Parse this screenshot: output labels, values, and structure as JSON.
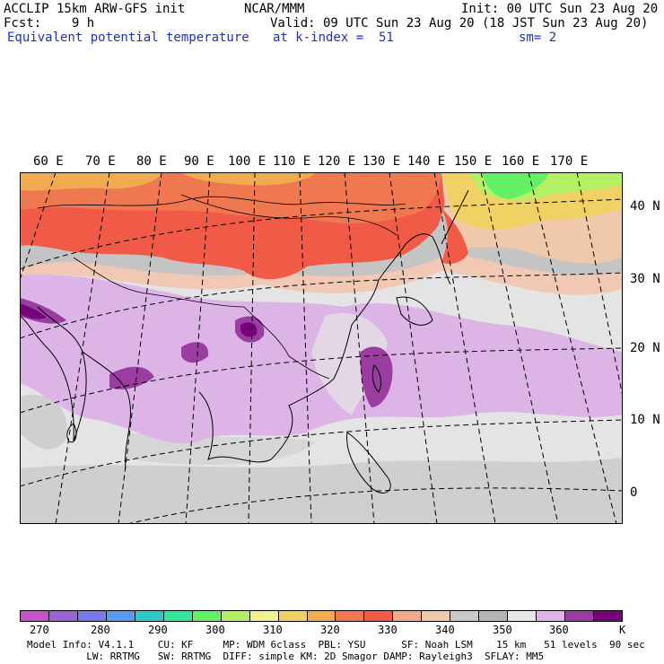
{
  "header": {
    "line1_left": "ACCLIP 15km ARW-GFS init",
    "line1_center": "NCAR/MMM",
    "line1_right": "Init: 00 UTC Sun 23 Aug 20",
    "line2_left": "Fcst:    9 h",
    "line2_right": "Valid: 09 UTC Sun 23 Aug 20 (18 JST Sun 23 Aug 20)",
    "line3_left": "Equivalent potential temperature",
    "line3_center": "at k-index =  51",
    "line3_right": "sm= 2"
  },
  "longitude_labels": [
    "60 E",
    "70 E",
    "80 E",
    "90 E",
    "100 E",
    "110 E",
    "120 E",
    "130 E",
    "140 E",
    "150 E",
    "160 E",
    "170 E"
  ],
  "latitude_labels": [
    "40 N",
    "30 N",
    "20 N",
    "10 N",
    "0"
  ],
  "colorbar": {
    "colors": [
      "#c850c8",
      "#9a64d2",
      "#7a7ae6",
      "#5a9af0",
      "#30c8c8",
      "#30e69a",
      "#64f064",
      "#b4f064",
      "#f0f08c",
      "#f0d264",
      "#f0aa50",
      "#f07850",
      "#f05a46",
      "#f0aa8c",
      "#f0c8aa",
      "#c8c8c8",
      "#b4b4b4",
      "#e6e6e6",
      "#dcb4e6",
      "#9a3ca0",
      "#780078"
    ],
    "tick_labels": [
      "270",
      "280",
      "290",
      "300",
      "310",
      "320",
      "330",
      "340",
      "350",
      "360"
    ],
    "unit": "K"
  },
  "model_info": {
    "line1": "Model Info: V4.1.1    CU: KF     MP: WDM 6class  PBL: YSU      SF: Noah LSM    15 km   51 levels  90 sec",
    "line2": "          LW: RRTMG   SW: RRTMG  DIFF: simple KM: 2D Smagor DAMP: Rayleigh3  SFLAY: MM5"
  }
}
